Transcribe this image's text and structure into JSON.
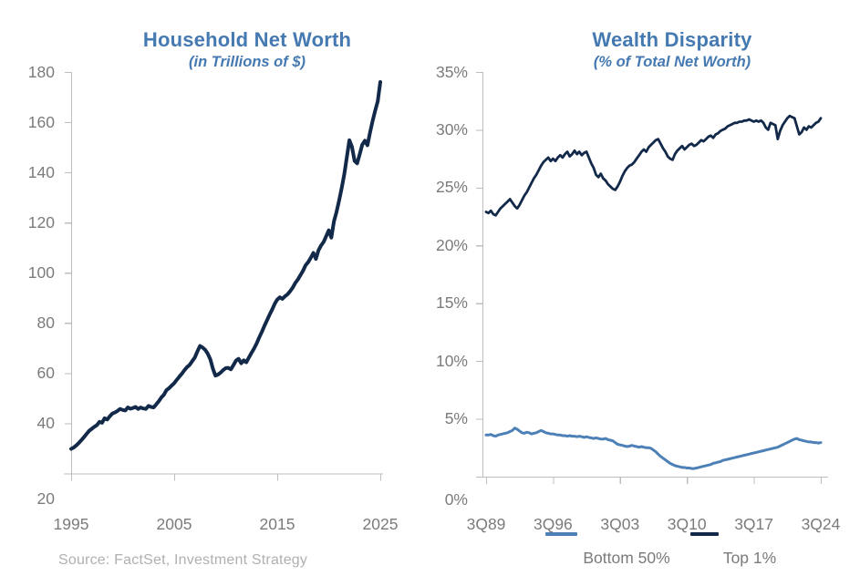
{
  "source_note": "Source: FactSet, Investment Strategy",
  "colors": {
    "title_blue": "#4579B1",
    "navy": "#12294A",
    "light_blue": "#4C80B6",
    "axis_gray": "#BDBDBD",
    "label_gray": "#7B7B7B",
    "source_gray": "#B1B0B0"
  },
  "chart_data": [
    {
      "type": "line",
      "title": "Household Net Worth",
      "subtitle": "(in Trillions of $)",
      "xlabel": "",
      "ylabel": "",
      "grid": false,
      "legend_position": "none",
      "ylim": [
        20,
        180
      ],
      "yticks": [
        180,
        160,
        140,
        120,
        100,
        80,
        60,
        40,
        20
      ],
      "ytick_labels": [
        "180",
        "160",
        "140",
        "120",
        "100",
        "80",
        "60",
        "40",
        "20"
      ],
      "xlim": [
        1995,
        2025
      ],
      "xticks": [
        1995,
        2005,
        2015,
        2025
      ],
      "xtick_labels": [
        "1995",
        "2005",
        "2015",
        "2025"
      ],
      "series": [
        {
          "name": "Household Net Worth",
          "color": "#12294A",
          "x_start": 1995.0,
          "x_step": 0.25,
          "values": [
            29.8,
            30.3,
            31.2,
            32.2,
            33.3,
            34.5,
            35.8,
            37.0,
            37.8,
            38.6,
            39.3,
            40.6,
            40.2,
            42.0,
            41.5,
            42.8,
            43.9,
            44.3,
            44.9,
            45.7,
            45.3,
            45.1,
            46.3,
            45.8,
            46.1,
            46.5,
            45.7,
            46.3,
            45.9,
            45.7,
            46.9,
            46.5,
            46.3,
            47.5,
            48.8,
            50.3,
            51.4,
            53.2,
            54.0,
            55.0,
            56.0,
            57.3,
            58.6,
            59.8,
            61.2,
            62.4,
            63.3,
            64.8,
            66.2,
            68.6,
            70.8,
            70.2,
            69.3,
            67.8,
            65.5,
            61.8,
            59.0,
            59.4,
            60.2,
            61.2,
            62.0,
            62.1,
            61.5,
            63.2,
            65.0,
            65.7,
            63.9,
            65.1,
            64.3,
            66.2,
            68.1,
            69.8,
            71.8,
            74.2,
            76.4,
            78.8,
            81.0,
            83.2,
            85.3,
            87.6,
            89.3,
            90.2,
            89.6,
            90.6,
            91.4,
            92.6,
            94.1,
            95.9,
            97.3,
            99.0,
            100.8,
            103.0,
            104.2,
            105.9,
            107.9,
            105.5,
            108.9,
            110.8,
            112.3,
            114.6,
            116.9,
            114.0,
            120.5,
            124.2,
            128.7,
            133.6,
            139.2,
            146.0,
            152.8,
            150.2,
            144.6,
            143.6,
            147.2,
            151.0,
            152.6,
            150.8,
            155.8,
            160.4,
            164.6,
            168.3,
            176.0
          ]
        }
      ]
    },
    {
      "type": "line",
      "title": "Wealth Disparity",
      "subtitle": "(% of Total Net Worth)",
      "xlabel": "",
      "ylabel": "",
      "grid": false,
      "legend_position": "bottom",
      "legend": [
        "Bottom 50%",
        "Top 1%"
      ],
      "ylim": [
        0,
        35
      ],
      "yticks": [
        35,
        30,
        25,
        20,
        15,
        10,
        5,
        0
      ],
      "ytick_labels": [
        "35%",
        "30%",
        "25%",
        "20%",
        "15%",
        "10%",
        "5%",
        "0%"
      ],
      "xlim": [
        1989.75,
        2024.75
      ],
      "xticks": [
        1989.75,
        1996.75,
        2003.75,
        2010.75,
        2017.75,
        2024.75
      ],
      "xtick_labels": [
        "3Q89",
        "3Q96",
        "3Q03",
        "3Q10",
        "3Q17",
        "3Q24"
      ],
      "series": [
        {
          "name": "Bottom 50%",
          "color": "#4C80B6",
          "x_start": 1989.75,
          "x_step": 0.25,
          "values": [
            3.6,
            3.6,
            3.65,
            3.55,
            3.5,
            3.6,
            3.65,
            3.7,
            3.75,
            3.8,
            3.9,
            4.0,
            4.2,
            4.1,
            3.95,
            3.8,
            3.75,
            3.85,
            3.8,
            3.7,
            3.75,
            3.8,
            3.9,
            4.0,
            3.9,
            3.8,
            3.75,
            3.7,
            3.7,
            3.65,
            3.6,
            3.6,
            3.55,
            3.55,
            3.5,
            3.55,
            3.5,
            3.5,
            3.45,
            3.5,
            3.45,
            3.4,
            3.45,
            3.4,
            3.35,
            3.3,
            3.35,
            3.3,
            3.25,
            3.25,
            3.3,
            3.2,
            3.15,
            3.1,
            2.95,
            2.8,
            2.75,
            2.7,
            2.65,
            2.6,
            2.65,
            2.7,
            2.65,
            2.6,
            2.55,
            2.6,
            2.55,
            2.5,
            2.5,
            2.45,
            2.3,
            2.15,
            1.95,
            1.75,
            1.6,
            1.45,
            1.3,
            1.15,
            1.05,
            0.95,
            0.9,
            0.85,
            0.8,
            0.8,
            0.75,
            0.75,
            0.7,
            0.7,
            0.75,
            0.8,
            0.85,
            0.9,
            0.95,
            1.0,
            1.05,
            1.15,
            1.2,
            1.25,
            1.3,
            1.4,
            1.45,
            1.5,
            1.55,
            1.6,
            1.65,
            1.7,
            1.75,
            1.8,
            1.85,
            1.9,
            1.95,
            2.0,
            2.05,
            2.1,
            2.15,
            2.2,
            2.25,
            2.3,
            2.35,
            2.4,
            2.45,
            2.5,
            2.55,
            2.65,
            2.75,
            2.85,
            2.95,
            3.05,
            3.15,
            3.25,
            3.3,
            3.2,
            3.15,
            3.1,
            3.05,
            3.0,
            3.0,
            2.95,
            2.95,
            2.9,
            2.95
          ]
        },
        {
          "name": "Top 1%",
          "color": "#12294A",
          "x_start": 1989.75,
          "x_step": 0.25,
          "values": [
            22.9,
            22.8,
            23.0,
            22.7,
            22.6,
            22.9,
            23.2,
            23.4,
            23.6,
            23.8,
            24.0,
            23.7,
            23.4,
            23.2,
            23.5,
            23.9,
            24.3,
            24.6,
            25.0,
            25.4,
            25.8,
            26.1,
            26.5,
            26.9,
            27.2,
            27.4,
            27.6,
            27.3,
            27.5,
            27.3,
            27.6,
            27.8,
            27.6,
            27.9,
            28.1,
            27.7,
            27.9,
            28.2,
            27.9,
            28.1,
            27.8,
            28.0,
            28.1,
            27.6,
            27.1,
            26.7,
            26.1,
            25.9,
            26.2,
            25.8,
            25.6,
            25.3,
            25.1,
            24.9,
            24.8,
            25.1,
            25.5,
            26.0,
            26.4,
            26.7,
            26.9,
            27.0,
            27.2,
            27.5,
            27.8,
            28.1,
            28.3,
            28.1,
            28.5,
            28.7,
            28.9,
            29.1,
            29.2,
            28.8,
            28.4,
            28.1,
            27.7,
            27.5,
            27.4,
            27.9,
            28.2,
            28.4,
            28.6,
            28.3,
            28.5,
            28.7,
            28.8,
            28.6,
            28.7,
            28.9,
            29.1,
            29.0,
            29.2,
            29.4,
            29.5,
            29.3,
            29.6,
            29.7,
            29.9,
            30.0,
            30.1,
            30.3,
            30.4,
            30.5,
            30.6,
            30.6,
            30.7,
            30.7,
            30.8,
            30.8,
            30.9,
            30.8,
            30.7,
            30.8,
            30.7,
            30.8,
            30.6,
            30.2,
            30.0,
            30.6,
            30.5,
            30.4,
            29.2,
            29.9,
            30.4,
            30.7,
            31.0,
            31.2,
            31.1,
            31.0,
            30.3,
            29.6,
            29.8,
            30.2,
            30.0,
            30.3,
            30.2,
            30.4,
            30.6,
            30.7,
            31.0
          ]
        }
      ]
    }
  ]
}
